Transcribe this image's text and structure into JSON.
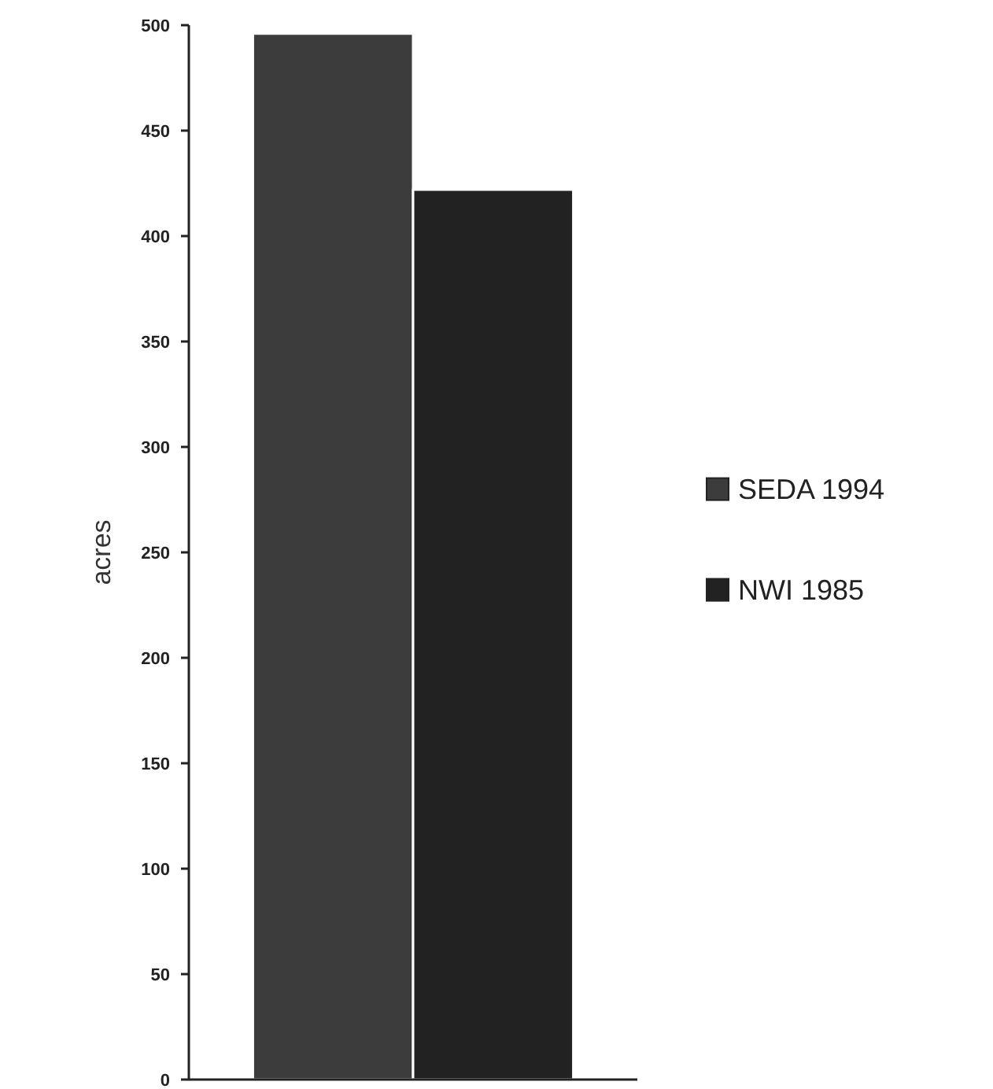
{
  "chart_data": {
    "type": "bar",
    "ylabel": "acres",
    "categories": [
      null
    ],
    "series": [
      {
        "name": "SEDA 1994",
        "color": "#3c3c3c",
        "values": [
          496
        ]
      },
      {
        "name": "NWI 1985",
        "color": "#222222",
        "values": [
          422
        ]
      }
    ],
    "ylim": [
      0,
      500
    ],
    "yticks": [
      0,
      50,
      100,
      150,
      200,
      250,
      300,
      350,
      400,
      450,
      500
    ],
    "grid": false,
    "legend": "right"
  }
}
